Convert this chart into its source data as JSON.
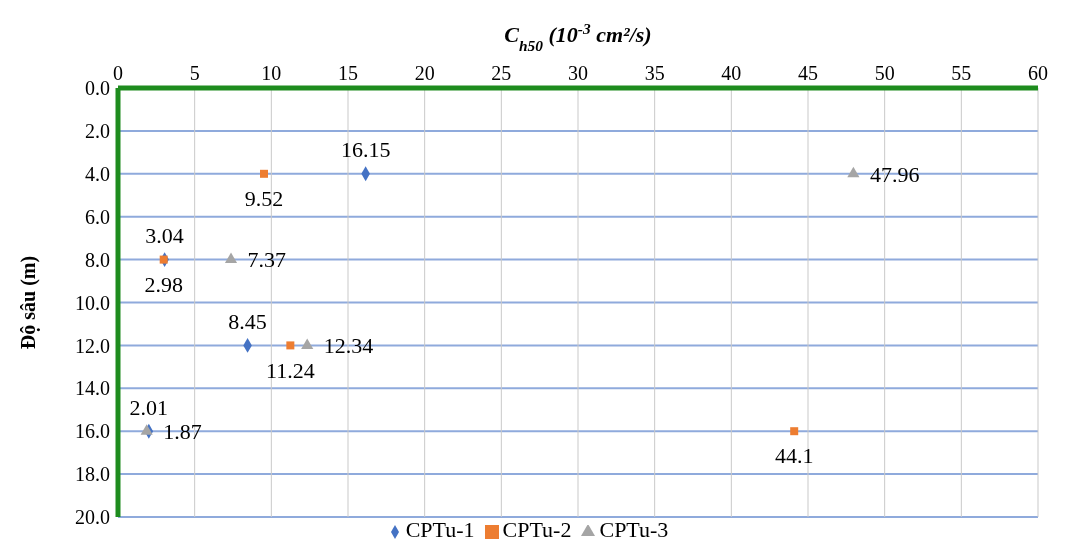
{
  "chart_data": {
    "type": "scatter",
    "orientation": "horizontal",
    "xlabel": "C$_{h50}$ (10$^{-3}$ cm²/s)",
    "ylabel": "Độ sâu (m)",
    "xlim": [
      0,
      60
    ],
    "xticks": [
      0,
      5,
      10,
      15,
      20,
      25,
      30,
      35,
      40,
      45,
      50,
      55,
      60
    ],
    "ylim": [
      20,
      0
    ],
    "yticks": [
      {
        "value": 0,
        "label": "0.0"
      },
      {
        "value": 2,
        "label": "2.0"
      },
      {
        "value": 4,
        "label": "4.0"
      },
      {
        "value": 6,
        "label": "6.0"
      },
      {
        "value": 8,
        "label": "8.0"
      },
      {
        "value": 10,
        "label": "10.0"
      },
      {
        "value": 12,
        "label": "12.0"
      },
      {
        "value": 14,
        "label": "14.0"
      },
      {
        "value": 16,
        "label": "16.0"
      },
      {
        "value": 18,
        "label": "18.0"
      },
      {
        "value": 20,
        "label": "20.0"
      }
    ],
    "grid": true,
    "legend": "bottom",
    "data_labels": true,
    "series": [
      {
        "name": "CPTu-1",
        "color": "#4472c4",
        "marker": "diamond",
        "x": [
          4,
          8,
          12,
          16
        ],
        "values": [
          16.15,
          3.04,
          8.45,
          2.01
        ]
      },
      {
        "name": "CPTu-2",
        "color": "#ed7d31",
        "marker": "square",
        "x": [
          4,
          8,
          12,
          16
        ],
        "values": [
          9.52,
          2.98,
          11.24,
          44.1
        ]
      },
      {
        "name": "CPTu-3",
        "color": "#a5a5a5",
        "marker": "triangle",
        "x": [
          4,
          8,
          12,
          16
        ],
        "values": [
          47.96,
          7.37,
          12.34,
          1.87
        ]
      }
    ]
  }
}
